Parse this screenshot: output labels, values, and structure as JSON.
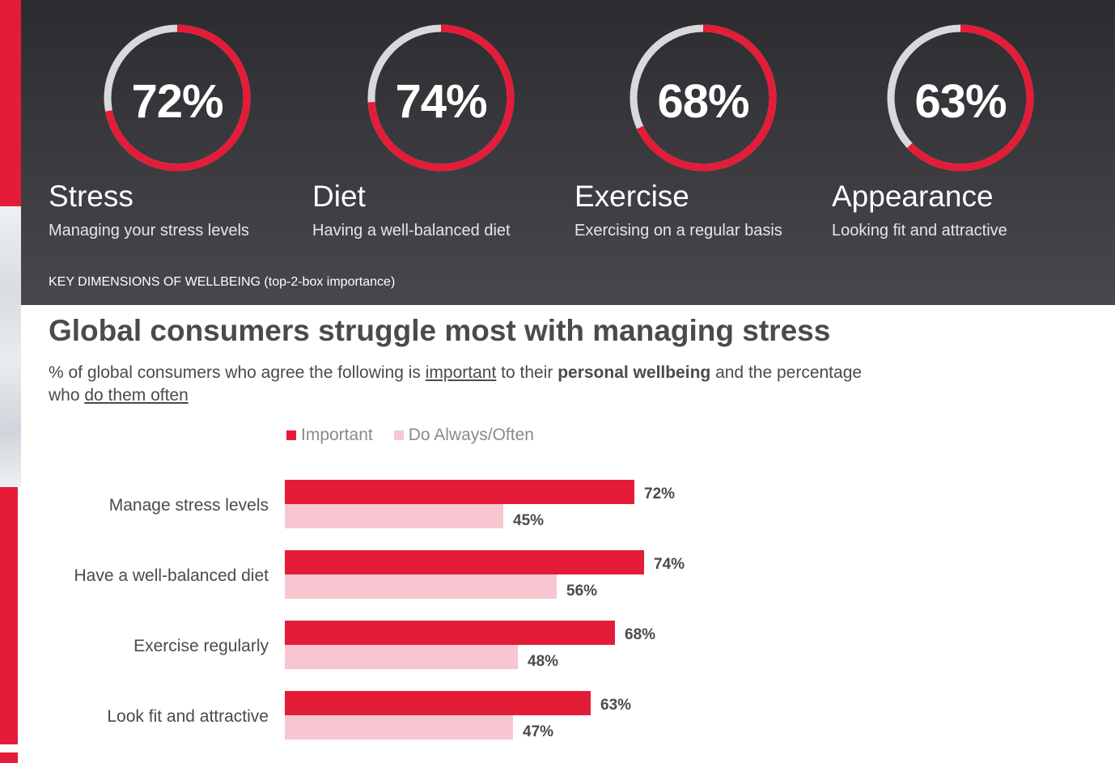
{
  "kpis": [
    {
      "value": "72%",
      "title": "Stress",
      "description": "Managing your stress levels",
      "fraction": 0.72
    },
    {
      "value": "74%",
      "title": "Diet",
      "description": "Having a well-balanced diet",
      "fraction": 0.74
    },
    {
      "value": "68%",
      "title": "Exercise",
      "description": "Exercising on a regular basis",
      "fraction": 0.68
    },
    {
      "value": "63%",
      "title": "Appearance",
      "description": "Looking fit and attractive",
      "fraction": 0.63
    }
  ],
  "panel_note": "KEY DIMENSIONS OF WELLBEING (top-2-box importance)",
  "headline": "Global consumers struggle most with managing stress",
  "subtitle": {
    "part1": "% of global consumers who agree the following is ",
    "underline1": "important",
    "part2": " to their ",
    "bold1": "personal wellbeing",
    "part3": " and the percentage who ",
    "underline2": "do them often"
  },
  "colors": {
    "accent": "#e41c38",
    "secondary": "#f7c6d0",
    "ring_track": "#d9d9db"
  },
  "chart_data": {
    "type": "bar",
    "orientation": "horizontal",
    "categories": [
      "Manage stress levels",
      "Have a well-balanced diet",
      "Exercise regularly",
      "Look fit and attractive"
    ],
    "series": [
      {
        "name": "Important",
        "values": [
          72,
          74,
          68,
          63
        ],
        "labels": [
          "72%",
          "74%",
          "68%",
          "63%"
        ],
        "color": "#e41c38"
      },
      {
        "name": "Do Always/Often",
        "values": [
          45,
          56,
          48,
          47
        ],
        "labels": [
          "45%",
          "56%",
          "48%",
          "47%"
        ],
        "color": "#f7c6d0"
      }
    ],
    "xlim": [
      0,
      100
    ],
    "legend_position": "top",
    "grid": false
  }
}
